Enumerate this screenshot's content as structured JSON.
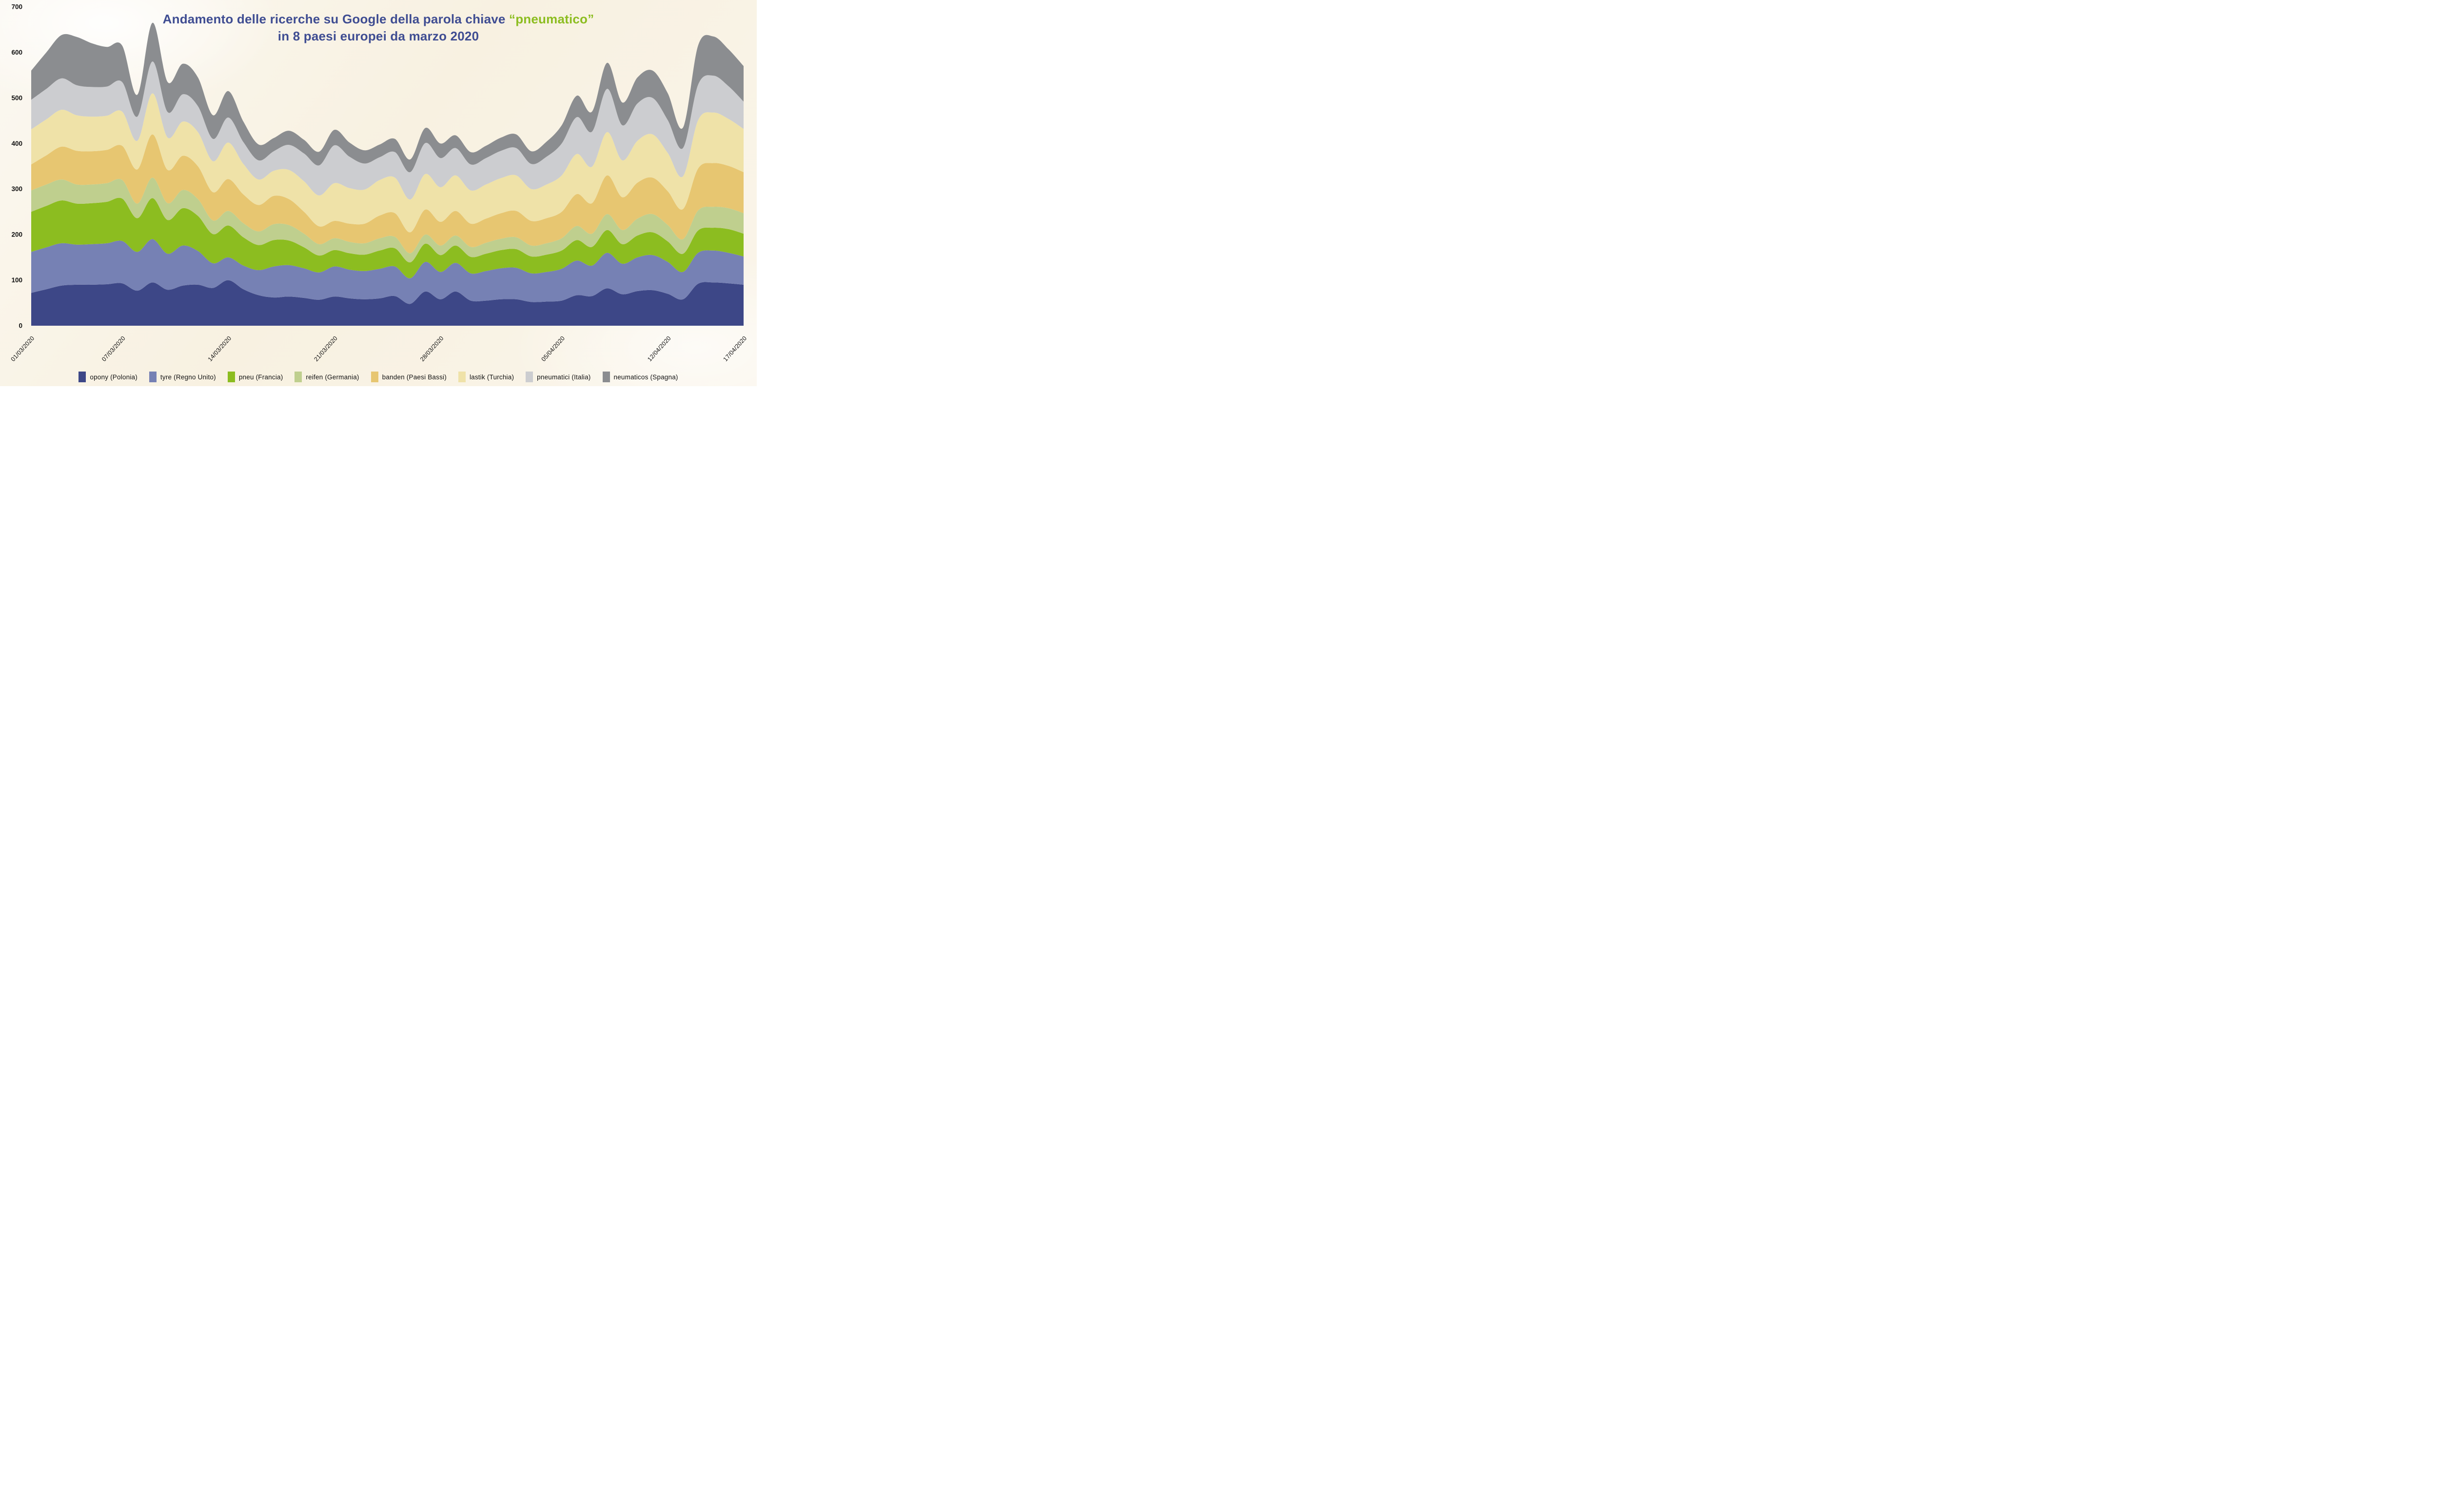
{
  "title": {
    "prefix": "Andamento delle ricerche su Google della parola chiave ",
    "keyword_quoted": "“pneumatico”",
    "line2": "in 8 paesi europei da marzo 2020"
  },
  "colors": {
    "title_text": "#3f4d92",
    "title_keyword": "#8cbd20",
    "axis_text": "#111111",
    "background_cream": "#f8f1e1"
  },
  "chart_data": {
    "type": "area",
    "stacked": true,
    "grid": false,
    "legend_position": "bottom",
    "ylim": [
      0,
      700
    ],
    "y_ticks": [
      0,
      100,
      200,
      300,
      400,
      500,
      600,
      700
    ],
    "x": [
      "01/03/2020",
      "02/03/2020",
      "03/03/2020",
      "04/03/2020",
      "05/03/2020",
      "06/03/2020",
      "07/03/2020",
      "08/03/2020",
      "09/03/2020",
      "10/03/2020",
      "11/03/2020",
      "12/03/2020",
      "13/03/2020",
      "14/03/2020",
      "15/03/2020",
      "16/03/2020",
      "17/03/2020",
      "18/03/2020",
      "19/03/2020",
      "20/03/2020",
      "21/03/2020",
      "22/03/2020",
      "23/03/2020",
      "24/03/2020",
      "25/03/2020",
      "26/03/2020",
      "27/03/2020",
      "28/03/2020",
      "29/03/2020",
      "30/03/2020",
      "31/03/2020",
      "01/04/2020",
      "02/04/2020",
      "03/04/2020",
      "04/04/2020",
      "05/04/2020",
      "06/04/2020",
      "07/04/2020",
      "08/04/2020",
      "09/04/2020",
      "10/04/2020",
      "11/04/2020",
      "12/04/2020",
      "13/04/2020",
      "14/04/2020",
      "15/04/2020",
      "16/04/2020",
      "17/04/2020"
    ],
    "x_tick_indices": [
      0,
      6,
      13,
      20,
      27,
      35,
      42,
      47
    ],
    "x_tick_labels": [
      "01/03/2020",
      "07/03/2020",
      "14/03/2020",
      "21/03/2020",
      "28/03/2020",
      "05/04/2020",
      "12/04/2020",
      "17/04/2020"
    ],
    "series": [
      {
        "key": "opony",
        "name": "opony",
        "country": "Polonia",
        "legend": "opony (Polonia)",
        "color": "#3d4787",
        "values": [
          72,
          80,
          88,
          90,
          90,
          91,
          93,
          77,
          95,
          79,
          88,
          90,
          83,
          100,
          80,
          67,
          62,
          64,
          61,
          57,
          64,
          60,
          58,
          60,
          65,
          48,
          75,
          58,
          75,
          55,
          55,
          58,
          58,
          52,
          53,
          55,
          67,
          65,
          82,
          69,
          76,
          78,
          70,
          58,
          92,
          95,
          93,
          90
        ]
      },
      {
        "key": "tyre",
        "name": "tyre",
        "country": "Regno Unito",
        "legend": "tyre (Regno Unito)",
        "color": "#7681b4",
        "values": [
          90,
          92,
          93,
          88,
          89,
          90,
          93,
          85,
          95,
          79,
          88,
          74,
          54,
          50,
          52,
          55,
          68,
          69,
          65,
          60,
          66,
          63,
          62,
          65,
          65,
          56,
          65,
          60,
          63,
          60,
          65,
          68,
          69,
          63,
          65,
          70,
          76,
          67,
          78,
          67,
          74,
          77,
          70,
          60,
          68,
          70,
          67,
          62
        ]
      },
      {
        "key": "pneu",
        "name": "pneu",
        "country": "Francia",
        "legend": "pneu (Francia)",
        "color": "#8cbd20",
        "values": [
          88,
          91,
          94,
          90,
          90,
          91,
          93,
          74,
          90,
          74,
          82,
          77,
          64,
          70,
          62,
          55,
          58,
          54,
          46,
          37,
          36,
          36,
          36,
          40,
          40,
          35,
          40,
          37,
          38,
          36,
          38,
          40,
          41,
          37,
          38,
          40,
          45,
          41,
          50,
          43,
          48,
          50,
          45,
          40,
          49,
          50,
          52,
          50
        ]
      },
      {
        "key": "reifen",
        "name": "reifen",
        "country": "Germania",
        "legend": "reifen (Germania)",
        "color": "#bfcf8e",
        "values": [
          47,
          47,
          46,
          42,
          41,
          41,
          41,
          32,
          45,
          37,
          40,
          37,
          30,
          32,
          31,
          30,
          35,
          34,
          30,
          25,
          26,
          25,
          25,
          27,
          25,
          20,
          20,
          21,
          22,
          22,
          24,
          25,
          26,
          24,
          25,
          27,
          31,
          29,
          35,
          31,
          37,
          40,
          36,
          32,
          44,
          46,
          46,
          45
        ]
      },
      {
        "key": "banden",
        "name": "banden",
        "country": "Paesi Bassi",
        "legend": "banden (Paesi Bassi)",
        "color": "#e7c671",
        "values": [
          57,
          64,
          72,
          74,
          73,
          73,
          75,
          75,
          95,
          73,
          75,
          72,
          62,
          70,
          63,
          58,
          62,
          57,
          48,
          39,
          38,
          40,
          43,
          50,
          52,
          46,
          55,
          52,
          54,
          51,
          53,
          56,
          58,
          54,
          55,
          58,
          70,
          67,
          85,
          72,
          79,
          80,
          74,
          66,
          92,
          96,
          93,
          90
        ]
      },
      {
        "key": "lastik",
        "name": "lastik",
        "country": "Turchia",
        "legend": "lastik (Turchia)",
        "color": "#efe2a8",
        "values": [
          77,
          79,
          81,
          78,
          76,
          75,
          75,
          63,
          90,
          71,
          75,
          75,
          68,
          80,
          67,
          56,
          55,
          64,
          67,
          68,
          83,
          78,
          75,
          78,
          78,
          72,
          78,
          76,
          78,
          73,
          75,
          77,
          78,
          70,
          74,
          80,
          88,
          80,
          95,
          81,
          92,
          95,
          84,
          72,
          106,
          111,
          103,
          95
        ]
      },
      {
        "key": "pneumatici",
        "name": "pneumatici",
        "country": "Italia",
        "legend": "pneumatici (Italia)",
        "color": "#cccdd0",
        "values": [
          65,
          67,
          69,
          66,
          65,
          64,
          65,
          53,
          70,
          56,
          60,
          57,
          49,
          55,
          48,
          42,
          43,
          55,
          61,
          66,
          83,
          69,
          57,
          50,
          56,
          60,
          68,
          64,
          60,
          57,
          58,
          60,
          60,
          55,
          61,
          70,
          81,
          77,
          95,
          77,
          82,
          80,
          72,
          62,
          78,
          81,
          72,
          60
        ]
      },
      {
        "key": "neumaticos",
        "name": "neumaticos",
        "country": "Spagna",
        "legend": "neumaticos (Spagna)",
        "color": "#8b8d90",
        "values": [
          64,
          80,
          95,
          106,
          96,
          87,
          80,
          48,
          85,
          66,
          67,
          63,
          52,
          58,
          45,
          35,
          29,
          31,
          30,
          30,
          34,
          31,
          29,
          28,
          29,
          28,
          33,
          32,
          28,
          27,
          27,
          29,
          30,
          28,
          33,
          40,
          47,
          44,
          57,
          50,
          57,
          60,
          59,
          45,
          86,
          86,
          81,
          78
        ]
      }
    ]
  }
}
